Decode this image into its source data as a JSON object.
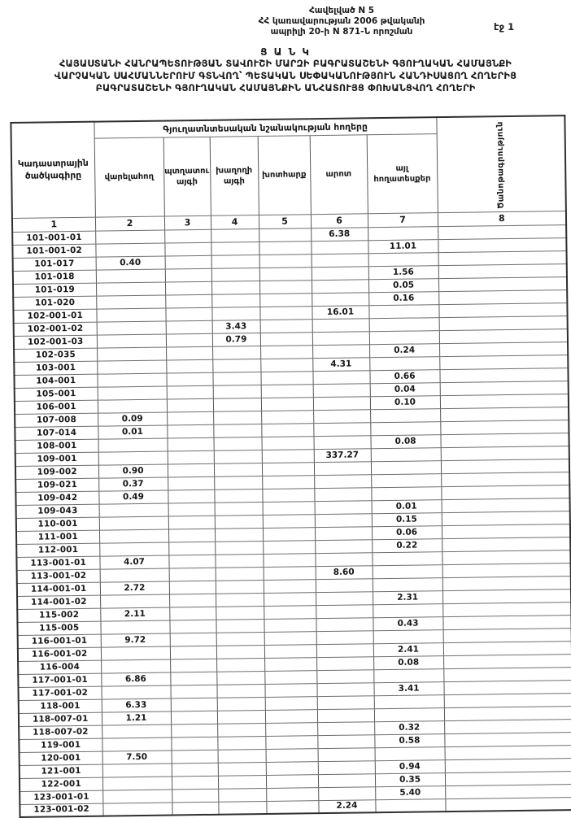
{
  "colors": {
    "paper": "#ffffff",
    "ink": "#1a1a1a",
    "grid": "#585858"
  },
  "page": {
    "appendix_lines": [
      "Հավելված N 5",
      "ՀՀ կառավարության 2006 թվականի",
      "ապրիլի 20-ի N 871-Ն որոշման"
    ],
    "page_number": "էջ 1",
    "title": "Ց Ա Ն Կ",
    "subtitle_lines": [
      "ՀԱՅԱՍՏԱՆԻ ՀԱՆՐԱՊԵՏՈՒԹՅԱՆ  ՏԱՎՈՒՇԻ ՄԱՐԶԻ ԲԱԳՐԱՏԱՇԵՆԻ ԳՅՈՒՂԱԿԱՆ  ՀԱՄԱՅՆՔԻ",
      "ՎԱՐՉԱԿԱՆ ՍԱՀՄԱՆՆԵՐՈՒՄ  ԳՏՆՎՈՂ՝  ՊԵՏԱԿԱՆ ՍԵՓԱԿԱՆՈՒԹՅՈՒՆ  ՀԱՆԴԻՍԱՑՈՂ ՀՈՂԵՐԻՑ",
      "ԲԱԳՐԱՏԱՇԵՆԻ ԳՅՈՒՂԱԿԱՆ ՀԱՄԱՅՆՔԻՆ ԱՆՀԱՏՈՒՅՑ ՓՈԽԱՆՑՎՈՂ   ՀՈՂԵՐԻ"
    ]
  },
  "table": {
    "col1_header": "Կադաստրային ծածկագիրը",
    "group_header": "Գյուղատնտեսական նշանակության հողերը",
    "col8_header": "Ծանոթագրություն",
    "sub_headers": [
      "վարելահող",
      "պտղատու այգի",
      "խաղողի այգի",
      "խոտհարք",
      "արոտ",
      "այլ հողատեսքեր"
    ],
    "numbers": [
      "1",
      "2",
      "3",
      "4",
      "5",
      "6",
      "7",
      "8"
    ],
    "rows": [
      [
        "101-001-01",
        "",
        "",
        "",
        "",
        "6.38",
        "",
        ""
      ],
      [
        "101-001-02",
        "",
        "",
        "",
        "",
        "",
        "11.01",
        ""
      ],
      [
        "101-017",
        "0.40",
        "",
        "",
        "",
        "",
        "",
        ""
      ],
      [
        "101-018",
        "",
        "",
        "",
        "",
        "",
        "1.56",
        ""
      ],
      [
        "101-019",
        "",
        "",
        "",
        "",
        "",
        "0.05",
        ""
      ],
      [
        "101-020",
        "",
        "",
        "",
        "",
        "",
        "0.16",
        ""
      ],
      [
        "102-001-01",
        "",
        "",
        "",
        "",
        "16.01",
        "",
        ""
      ],
      [
        "102-001-02",
        "",
        "",
        "3.43",
        "",
        "",
        "",
        ""
      ],
      [
        "102-001-03",
        "",
        "",
        "0.79",
        "",
        "",
        "",
        ""
      ],
      [
        "102-035",
        "",
        "",
        "",
        "",
        "",
        "0.24",
        ""
      ],
      [
        "103-001",
        "",
        "",
        "",
        "",
        "4.31",
        "",
        ""
      ],
      [
        "104-001",
        "",
        "",
        "",
        "",
        "",
        "0.66",
        ""
      ],
      [
        "105-001",
        "",
        "",
        "",
        "",
        "",
        "0.04",
        ""
      ],
      [
        "106-001",
        "",
        "",
        "",
        "",
        "",
        "0.10",
        ""
      ],
      [
        "107-008",
        "0.09",
        "",
        "",
        "",
        "",
        "",
        ""
      ],
      [
        "107-014",
        "0.01",
        "",
        "",
        "",
        "",
        "",
        ""
      ],
      [
        "108-001",
        "",
        "",
        "",
        "",
        "",
        "0.08",
        ""
      ],
      [
        "109-001",
        "",
        "",
        "",
        "",
        "337.27",
        "",
        ""
      ],
      [
        "109-002",
        "0.90",
        "",
        "",
        "",
        "",
        "",
        ""
      ],
      [
        "109-021",
        "0.37",
        "",
        "",
        "",
        "",
        "",
        ""
      ],
      [
        "109-042",
        "0.49",
        "",
        "",
        "",
        "",
        "",
        ""
      ],
      [
        "109-043",
        "",
        "",
        "",
        "",
        "",
        "0.01",
        ""
      ],
      [
        "110-001",
        "",
        "",
        "",
        "",
        "",
        "0.15",
        ""
      ],
      [
        "111-001",
        "",
        "",
        "",
        "",
        "",
        "0.06",
        ""
      ],
      [
        "112-001",
        "",
        "",
        "",
        "",
        "",
        "0.22",
        ""
      ],
      [
        "113-001-01",
        "4.07",
        "",
        "",
        "",
        "",
        "",
        ""
      ],
      [
        "113-001-02",
        "",
        "",
        "",
        "",
        "8.60",
        "",
        ""
      ],
      [
        "114-001-01",
        "2.72",
        "",
        "",
        "",
        "",
        "",
        ""
      ],
      [
        "114-001-02",
        "",
        "",
        "",
        "",
        "",
        "2.31",
        ""
      ],
      [
        "115-002",
        "2.11",
        "",
        "",
        "",
        "",
        "",
        ""
      ],
      [
        "115-005",
        "",
        "",
        "",
        "",
        "",
        "0.43",
        ""
      ],
      [
        "116-001-01",
        "9.72",
        "",
        "",
        "",
        "",
        "",
        ""
      ],
      [
        "116-001-02",
        "",
        "",
        "",
        "",
        "",
        "2.41",
        ""
      ],
      [
        "116-004",
        "",
        "",
        "",
        "",
        "",
        "0.08",
        ""
      ],
      [
        "117-001-01",
        "6.86",
        "",
        "",
        "",
        "",
        "",
        ""
      ],
      [
        "117-001-02",
        "",
        "",
        "",
        "",
        "",
        "3.41",
        ""
      ],
      [
        "118-001",
        "6.33",
        "",
        "",
        "",
        "",
        "",
        ""
      ],
      [
        "118-007-01",
        "1.21",
        "",
        "",
        "",
        "",
        "",
        ""
      ],
      [
        "118-007-02",
        "",
        "",
        "",
        "",
        "",
        "0.32",
        ""
      ],
      [
        "119-001",
        "",
        "",
        "",
        "",
        "",
        "0.58",
        ""
      ],
      [
        "120-001",
        "7.50",
        "",
        "",
        "",
        "",
        "",
        ""
      ],
      [
        "121-001",
        "",
        "",
        "",
        "",
        "",
        "0.94",
        ""
      ],
      [
        "122-001",
        "",
        "",
        "",
        "",
        "",
        "0.35",
        ""
      ],
      [
        "123-001-01",
        "",
        "",
        "",
        "",
        "",
        "5.40",
        ""
      ],
      [
        "123-001-02",
        "",
        "",
        "",
        "",
        "2.24",
        "",
        ""
      ]
    ]
  }
}
